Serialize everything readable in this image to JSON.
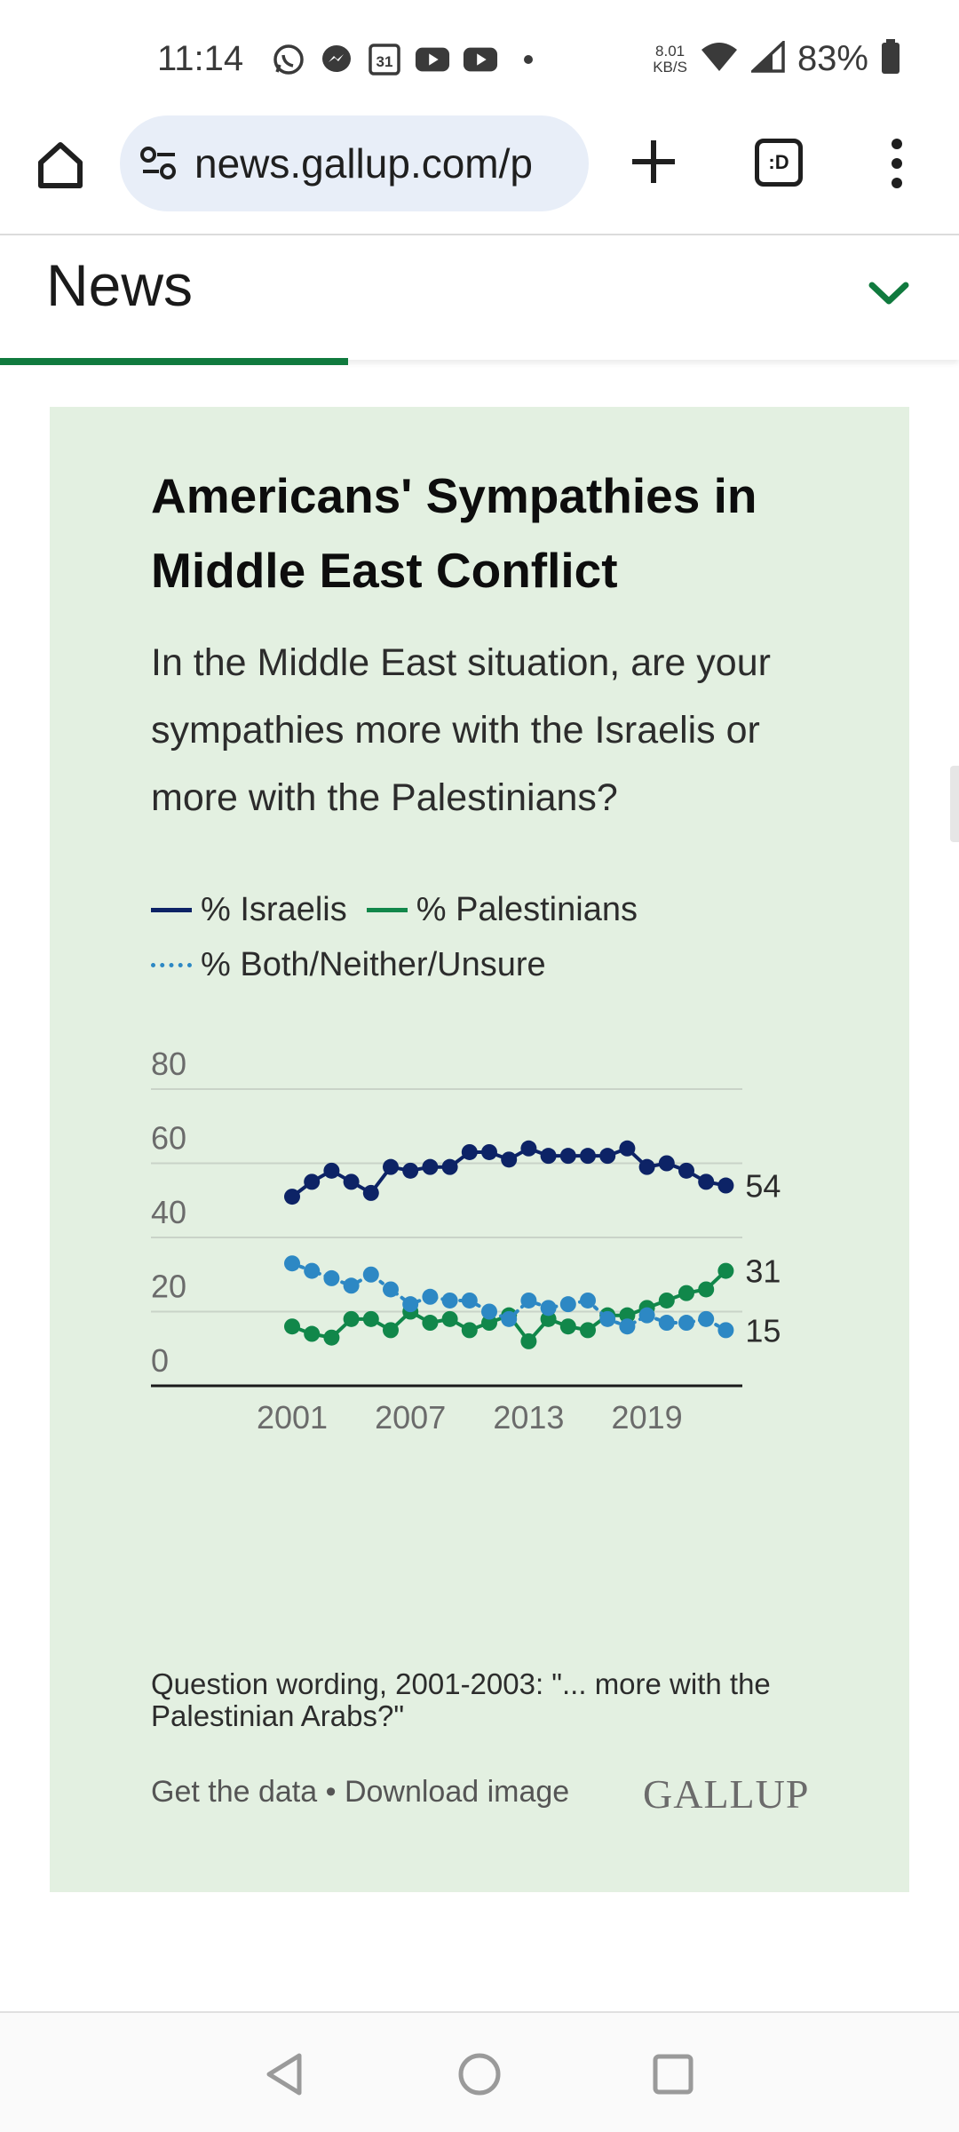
{
  "status_bar": {
    "time": "11:14",
    "net_speed_value": "8.01",
    "net_speed_unit": "KB/S",
    "battery": "83%",
    "icons": [
      "whatsapp-icon",
      "messenger-icon",
      "calendar-icon",
      "youtube-icon",
      "youtube-icon",
      "dot-icon",
      "wifi-icon",
      "signal-icon",
      "battery-icon"
    ],
    "calendar_day": "31"
  },
  "browser": {
    "url": "news.gallup.com/p",
    "tabs_label": ":D"
  },
  "page_header": {
    "title": "News",
    "accent_color": "#107a3e"
  },
  "card": {
    "background": "#e3f0e1",
    "title": "Americans' Sympathies in Middle East Conflict",
    "subtitle": "In the Middle East situation, are your sympathies more with the Israelis or more with the Palestinians?",
    "legend": {
      "israelis": "% Israelis",
      "palestinians": "% Palestinians",
      "both": "% Both/Neither/Unsure"
    },
    "footnote": "Question wording, 2001-2003: \"... more with the Palestinian Arabs?\"",
    "get_data": "Get the data",
    "separator": "•",
    "download": "Download image",
    "logo": "GALLUP"
  },
  "chart_data": {
    "type": "line",
    "title": "",
    "xlabel": "",
    "ylabel": "",
    "ylim": [
      0,
      80
    ],
    "yticks": [
      "0",
      "20",
      "40",
      "60",
      "80"
    ],
    "xticks": [
      "2001",
      "2007",
      "2013",
      "2019"
    ],
    "x": [
      2001,
      2002,
      2003,
      2004,
      2005,
      2006,
      2007,
      2008,
      2009,
      2010,
      2011,
      2012,
      2013,
      2014,
      2015,
      2016,
      2017,
      2018,
      2019,
      2020,
      2021,
      2022,
      2023,
      2024
    ],
    "series": [
      {
        "name": "% Israelis",
        "color": "#0d2366",
        "style": "solid",
        "values": [
          51,
          55,
          58,
          55,
          52,
          59,
          58,
          59,
          59,
          63,
          63,
          61,
          64,
          62,
          62,
          62,
          62,
          64,
          59,
          60,
          58,
          55,
          54,
          null
        ],
        "end_label": "54"
      },
      {
        "name": "% Palestinians",
        "color": "#11874a",
        "style": "solid",
        "values": [
          16,
          14,
          13,
          18,
          18,
          15,
          20,
          17,
          18,
          15,
          17,
          19,
          12,
          18,
          16,
          15,
          19,
          19,
          21,
          23,
          25,
          26,
          31,
          null
        ],
        "end_label": "31"
      },
      {
        "name": "% Both/Neither/Unsure",
        "color": "#2d88c4",
        "style": "dotted",
        "values": [
          33,
          31,
          29,
          27,
          30,
          26,
          22,
          24,
          23,
          23,
          20,
          18,
          23,
          21,
          22,
          23,
          18,
          16,
          19,
          17,
          17,
          18,
          15,
          null
        ],
        "end_label": "15"
      }
    ],
    "grid": true
  }
}
